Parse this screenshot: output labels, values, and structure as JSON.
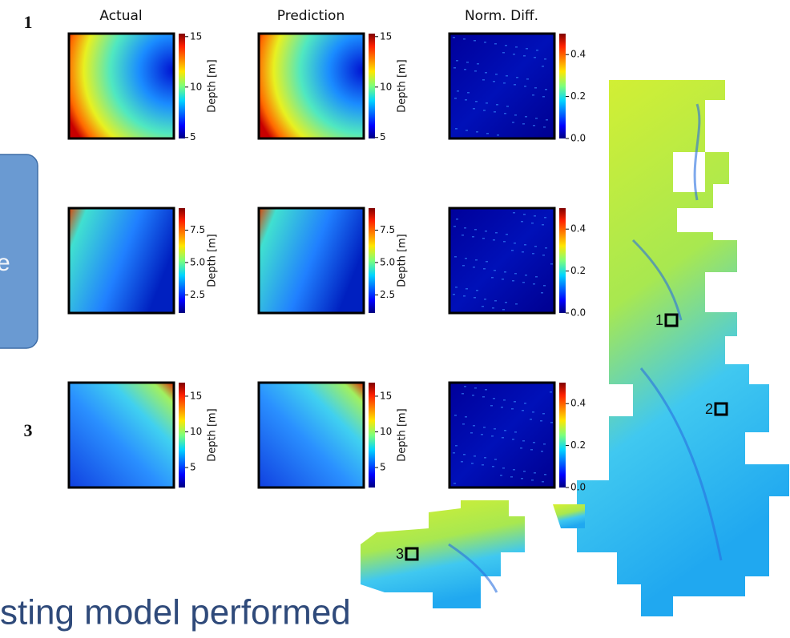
{
  "column_titles": [
    "Actual",
    "Prediction",
    "Norm. Diff."
  ],
  "rows": [
    {
      "label": "1",
      "depth": {
        "label": "Depth [m]",
        "range": [
          4.9,
          15.3
        ],
        "ticks": [
          15,
          10,
          5
        ]
      },
      "diff": {
        "range": [
          0,
          0.5
        ],
        "ticks": [
          0.4,
          0.2,
          {
            "value": 0,
            "label": "0.0"
          }
        ]
      }
    },
    {
      "depth": {
        "label": "Depth [m]",
        "range": [
          1.1,
          9.2
        ],
        "ticks": [
          7.5,
          {
            "value": 5,
            "label": "5.0"
          },
          2.5
        ]
      },
      "diff": {
        "range": [
          0,
          0.5
        ],
        "ticks": [
          0.4,
          0.2,
          {
            "value": 0,
            "label": "0.0"
          }
        ]
      }
    },
    {
      "label": "3",
      "depth": {
        "label": "Depth [m]",
        "range": [
          2.2,
          16.9
        ],
        "ticks": [
          15,
          10,
          5
        ]
      },
      "diff": {
        "range": [
          0,
          0.5
        ],
        "ticks": [
          0.4,
          0.2,
          {
            "value": 0,
            "label": "0.0"
          }
        ]
      }
    }
  ],
  "callout": {
    "text": "e"
  },
  "map_markers": [
    "1",
    "2",
    "3"
  ],
  "footer": {
    "text": "sting model performed"
  }
}
